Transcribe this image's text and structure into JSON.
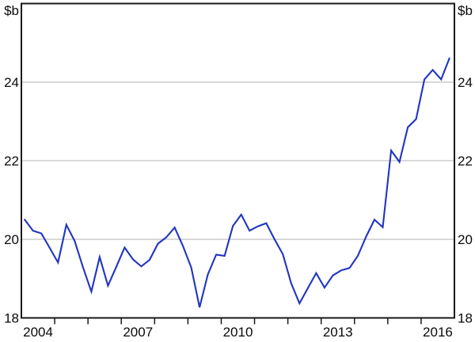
{
  "chart": {
    "unit_label_left": "$b",
    "unit_label_right": "$b"
  },
  "chart_data": {
    "type": "line",
    "unit": "$b",
    "x_start": 2004.1,
    "x_step": 0.25,
    "xlim": [
      2004,
      2017
    ],
    "ylim": [
      18,
      26
    ],
    "y_ticks": [
      18,
      20,
      22,
      24
    ],
    "gridline_values": [
      20,
      22,
      24
    ],
    "x_label_years": [
      2004,
      2007,
      2010,
      2013,
      2016
    ],
    "x_tick_start_year": 2005,
    "x_tick_end_year": 2016,
    "grid": "horizontal",
    "legend": "none",
    "colors": {
      "line": "#2135c1",
      "frame": "#1a1a1a",
      "gridline": "#cccccc",
      "text": "#0a0a0a"
    },
    "series": [
      {
        "name": "value",
        "values": [
          20.5,
          20.22,
          20.15,
          19.78,
          19.41,
          20.37,
          19.96,
          19.29,
          18.67,
          19.55,
          18.82,
          19.3,
          19.79,
          19.49,
          19.31,
          19.48,
          19.89,
          20.05,
          20.3,
          19.83,
          19.28,
          18.27,
          19.11,
          19.61,
          19.58,
          20.34,
          20.63,
          20.22,
          20.33,
          20.41,
          20.0,
          19.62,
          18.88,
          18.37,
          18.76,
          19.14,
          18.77,
          19.08,
          19.21,
          19.27,
          19.58,
          20.07,
          20.5,
          20.31,
          22.26,
          21.97,
          22.85,
          23.06,
          24.07,
          24.31,
          24.07,
          24.61
        ]
      }
    ]
  }
}
